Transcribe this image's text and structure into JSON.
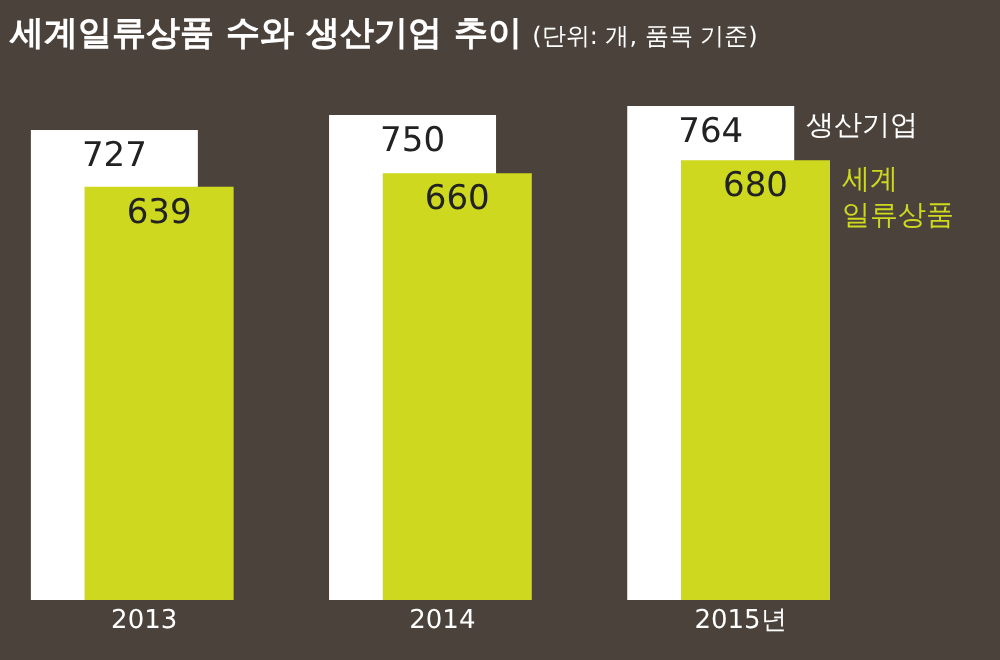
{
  "chart_data": {
    "type": "bar",
    "title": "세계일류상품 수와 생산기업 추이",
    "subtitle": "(단위: 개, 품목 기준)",
    "categories": [
      "2013",
      "2014",
      "2015년"
    ],
    "series": [
      {
        "name": "생산기업",
        "color": "#ffffff",
        "values": [
          727,
          750,
          764
        ]
      },
      {
        "name": "세계\n일류상품",
        "color": "#cdd81e",
        "values": [
          639,
          660,
          680
        ]
      }
    ],
    "tick_labels": "x",
    "data_labels": true,
    "legend": false
  }
}
